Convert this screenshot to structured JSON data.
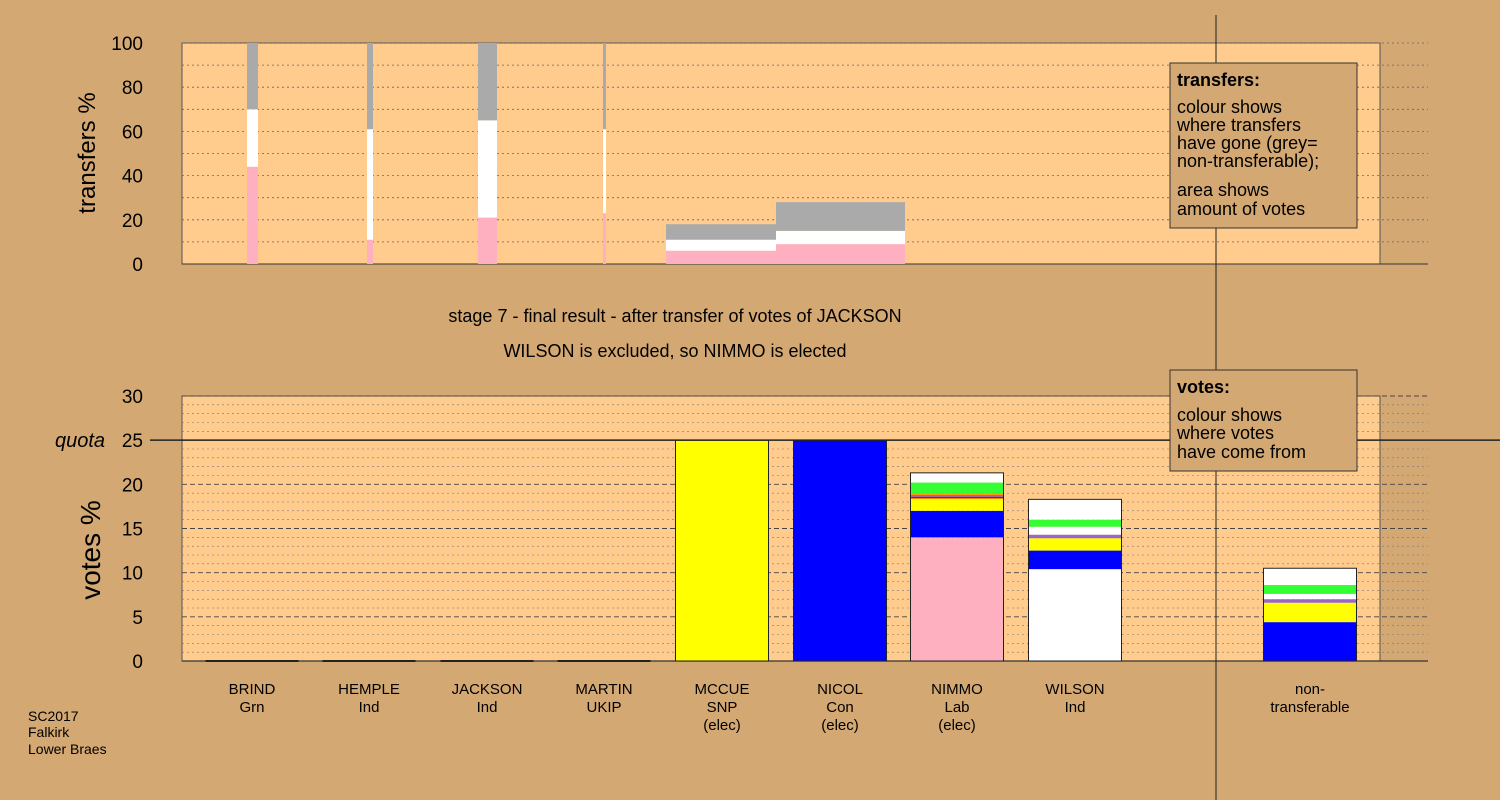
{
  "info": {
    "lines": [
      "SC2017",
      "Falkirk",
      "Lower Braes"
    ]
  },
  "stage": {
    "line1": "stage 7 - final result - after transfer of votes of JACKSON",
    "line2": "WILSON is excluded, so NIMMO is elected"
  },
  "colors": {
    "background": "#d4a873",
    "plot": "#ffcc8e",
    "grey": "#aaaaaa",
    "white": "#ffffff",
    "pink": "#ffb0c0",
    "yellow": "#ffff00",
    "blue": "#0000ff",
    "green": "#33ff33",
    "purple": "#9966cc",
    "red": "#dd0000",
    "orange": "#ff9900"
  },
  "legend_transfers": {
    "title": "transfers:",
    "lines": [
      "colour shows",
      "where transfers",
      "have gone (grey=",
      "non-transferable);",
      "area shows",
      "amount of votes"
    ]
  },
  "legend_votes": {
    "title": "votes:",
    "lines": [
      "colour shows",
      "where votes",
      "have come from"
    ]
  },
  "chart_data": [
    {
      "type": "bar",
      "name": "transfers",
      "ylabel": "transfers %",
      "ylim": [
        0,
        100
      ],
      "yticks": [
        0,
        20,
        40,
        60,
        80,
        100
      ],
      "grid": true,
      "transfer_bars": [
        {
          "from": "BRIND",
          "segments": [
            {
              "color": "pink",
              "value": 44
            },
            {
              "color": "white",
              "value": 26
            },
            {
              "color": "grey",
              "value": 30
            }
          ]
        },
        {
          "from": "HEMPLE",
          "segments": [
            {
              "color": "pink",
              "value": 11
            },
            {
              "color": "white",
              "value": 50
            },
            {
              "color": "grey",
              "value": 39
            }
          ]
        },
        {
          "from": "JACKSON",
          "segments": [
            {
              "color": "pink",
              "value": 21
            },
            {
              "color": "white",
              "value": 44
            },
            {
              "color": "grey",
              "value": 35
            }
          ]
        },
        {
          "from": "MARTIN",
          "segments": [
            {
              "color": "pink",
              "value": 23
            },
            {
              "color": "white",
              "value": 38
            },
            {
              "color": "grey",
              "value": 39
            }
          ]
        },
        {
          "from": "MCCUE",
          "segments": [
            {
              "color": "pink",
              "value": 6
            },
            {
              "color": "white",
              "value": 5
            },
            {
              "color": "grey",
              "value": 7
            }
          ]
        },
        {
          "from": "NICOL",
          "segments": [
            {
              "color": "pink",
              "value": 9
            },
            {
              "color": "white",
              "value": 6
            },
            {
              "color": "grey",
              "value": 13
            }
          ]
        }
      ]
    },
    {
      "type": "bar",
      "name": "votes",
      "ylabel": "votes %",
      "ylim": [
        0,
        30
      ],
      "yticks": [
        0,
        5,
        10,
        15,
        20,
        25,
        30
      ],
      "quota": 25,
      "quota_label": "quota",
      "grid": true,
      "categories": [
        {
          "name": "BRIND",
          "party": "Grn",
          "status": "",
          "segments": []
        },
        {
          "name": "HEMPLE",
          "party": "Ind",
          "status": "",
          "segments": []
        },
        {
          "name": "JACKSON",
          "party": "Ind",
          "status": "",
          "segments": []
        },
        {
          "name": "MARTIN",
          "party": "UKIP",
          "status": "",
          "segments": []
        },
        {
          "name": "MCCUE",
          "party": "SNP",
          "status": "(elec)",
          "segments": [
            {
              "color": "yellow",
              "value": 25
            }
          ]
        },
        {
          "name": "NICOL",
          "party": "Con",
          "status": "(elec)",
          "segments": [
            {
              "color": "blue",
              "value": 25
            }
          ]
        },
        {
          "name": "NIMMO",
          "party": "Lab",
          "status": "(elec)",
          "segments": [
            {
              "color": "pink",
              "value": 14
            },
            {
              "color": "blue",
              "value": 3
            },
            {
              "color": "yellow",
              "value": 1.4
            },
            {
              "color": "red",
              "value": 0.2
            },
            {
              "color": "purple",
              "value": 0.2
            },
            {
              "color": "orange",
              "value": 0.2
            },
            {
              "color": "green",
              "value": 1.2
            },
            {
              "color": "white",
              "value": 1.1
            }
          ]
        },
        {
          "name": "WILSON",
          "party": "Ind",
          "status": "",
          "segments": [
            {
              "color": "white",
              "value": 10.4
            },
            {
              "color": "blue",
              "value": 2.1
            },
            {
              "color": "yellow",
              "value": 1.4
            },
            {
              "color": "purple",
              "value": 0.4
            },
            {
              "color": "white",
              "value": 0.9
            },
            {
              "color": "green",
              "value": 0.8
            },
            {
              "color": "white",
              "value": 2.3
            }
          ]
        },
        {
          "name": "non-",
          "party": "transferable",
          "status": "",
          "segments": [
            {
              "color": "blue",
              "value": 4.4
            },
            {
              "color": "yellow",
              "value": 2.2
            },
            {
              "color": "purple",
              "value": 0.4
            },
            {
              "color": "white",
              "value": 0.6
            },
            {
              "color": "green",
              "value": 1
            },
            {
              "color": "white",
              "value": 1.9
            }
          ]
        }
      ]
    }
  ]
}
